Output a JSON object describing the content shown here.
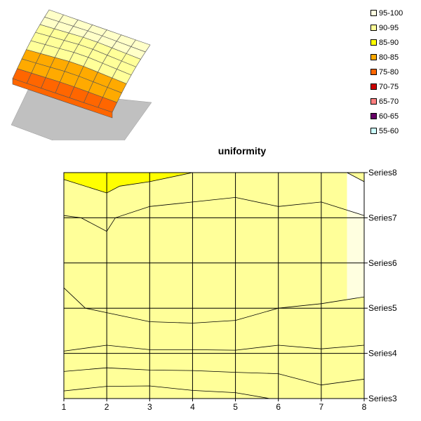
{
  "chart_data": [
    {
      "type": "surface-3d",
      "caption": "",
      "bands": [
        {
          "label": "95-100",
          "color": "#FFFFE0"
        },
        {
          "label": "90-95",
          "color": "#FFFF99"
        },
        {
          "label": "85-90",
          "color": "#FFFF00"
        },
        {
          "label": "80-85",
          "color": "#FFAA00"
        },
        {
          "label": "75-80",
          "color": "#FF6600"
        },
        {
          "label": "70-75",
          "color": "#CC0000"
        },
        {
          "label": "65-70",
          "color": "#FF8080"
        },
        {
          "label": "60-65",
          "color": "#660066"
        },
        {
          "label": "55-60",
          "color": "#CCFFFF"
        }
      ]
    },
    {
      "type": "contour",
      "title": "uniformity",
      "x_ticks": [
        "1",
        "2",
        "3",
        "4",
        "5",
        "6",
        "7",
        "8"
      ],
      "series_labels": [
        "Series3",
        "Series4",
        "Series5",
        "Series6",
        "Series7",
        "Series8"
      ],
      "xlim": [
        1,
        8
      ],
      "ylim": [
        3,
        8
      ],
      "bands": [
        {
          "label": "75-80",
          "color": "#FF6600",
          "upper": [
            [
              1,
              3.17
            ],
            [
              2,
              3.27
            ],
            [
              3,
              3.28
            ],
            [
              4,
              3.18
            ],
            [
              5,
              3.13
            ],
            [
              5.8,
              3.0
            ]
          ]
        },
        {
          "label": "80-85",
          "color": "#FFAA00",
          "upper": [
            [
              1,
              3.6
            ],
            [
              2,
              3.68
            ],
            [
              3,
              3.63
            ],
            [
              4,
              3.62
            ],
            [
              5,
              3.58
            ],
            [
              6,
              3.55
            ],
            [
              7,
              3.3
            ],
            [
              8,
              3.43
            ]
          ]
        },
        {
          "label": "85-90",
          "color": "#FFFF00",
          "upper": [
            [
              1,
              4.05
            ],
            [
              2,
              4.18
            ],
            [
              3,
              4.08
            ],
            [
              4,
              4.08
            ],
            [
              5,
              4.07
            ],
            [
              6,
              4.18
            ],
            [
              7,
              4.1
            ],
            [
              8,
              4.18
            ]
          ]
        },
        {
          "label": "90-95",
          "color": "#FFFF99",
          "upper": [
            [
              1,
              5.45
            ],
            [
              1.5,
              5.0
            ],
            [
              2,
              4.9
            ],
            [
              3,
              4.7
            ],
            [
              4,
              4.67
            ],
            [
              5,
              4.73
            ],
            [
              6,
              5.0
            ],
            [
              7,
              5.1
            ],
            [
              8,
              5.25
            ]
          ]
        },
        {
          "label": "95-100",
          "color": "#FFFFE0",
          "lower": [
            [
              1,
              5.45
            ],
            [
              1.5,
              5.0
            ],
            [
              2,
              4.9
            ],
            [
              3,
              4.7
            ],
            [
              4,
              4.67
            ],
            [
              5,
              4.73
            ],
            [
              6,
              5.0
            ],
            [
              7,
              5.1
            ],
            [
              8,
              5.25
            ]
          ],
          "upper": [
            [
              1,
              7.05
            ],
            [
              1.4,
              7.0
            ],
            [
              2,
              6.7
            ],
            [
              2.2,
              7.0
            ],
            [
              3,
              7.25
            ],
            [
              4,
              7.35
            ],
            [
              5,
              7.45
            ],
            [
              6,
              7.25
            ],
            [
              7,
              7.35
            ],
            [
              8,
              7.05
            ]
          ]
        },
        {
          "label": "90-95",
          "color": "#FFFF99",
          "upper": [
            [
              1,
              7.85
            ],
            [
              2,
              7.55
            ],
            [
              2.3,
              7.7
            ],
            [
              3,
              7.8
            ],
            [
              4,
              8.0
            ],
            [
              8,
              8.0
            ],
            [
              8,
              7.8
            ],
            [
              7.6,
              8.0
            ]
          ]
        },
        {
          "label": "85-90",
          "color": "#FFFF00",
          "lower": [
            [
              1,
              7.85
            ],
            [
              2,
              7.55
            ],
            [
              2.3,
              7.7
            ],
            [
              3,
              7.8
            ],
            [
              4,
              8.0
            ]
          ],
          "upper": [
            [
              1,
              8.0
            ],
            [
              4,
              8.0
            ]
          ]
        }
      ]
    }
  ]
}
